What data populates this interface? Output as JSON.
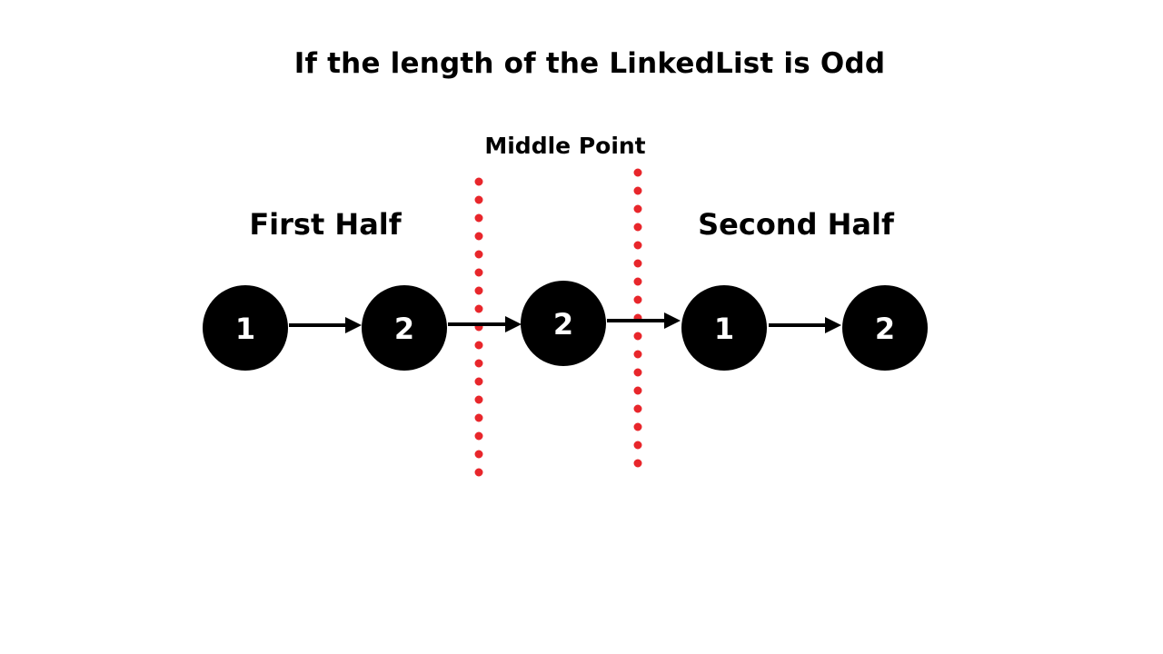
{
  "title": "If the length of the LinkedList is Odd",
  "labels": {
    "middle_point": "Middle Point",
    "first_half": "First Half",
    "second_half": "Second Half"
  },
  "nodes": [
    "1",
    "2",
    "2",
    "1",
    "2"
  ],
  "colors": {
    "node_fill": "#000000",
    "node_text": "#ffffff",
    "divider": "#e8262b",
    "arrow": "#000000"
  }
}
